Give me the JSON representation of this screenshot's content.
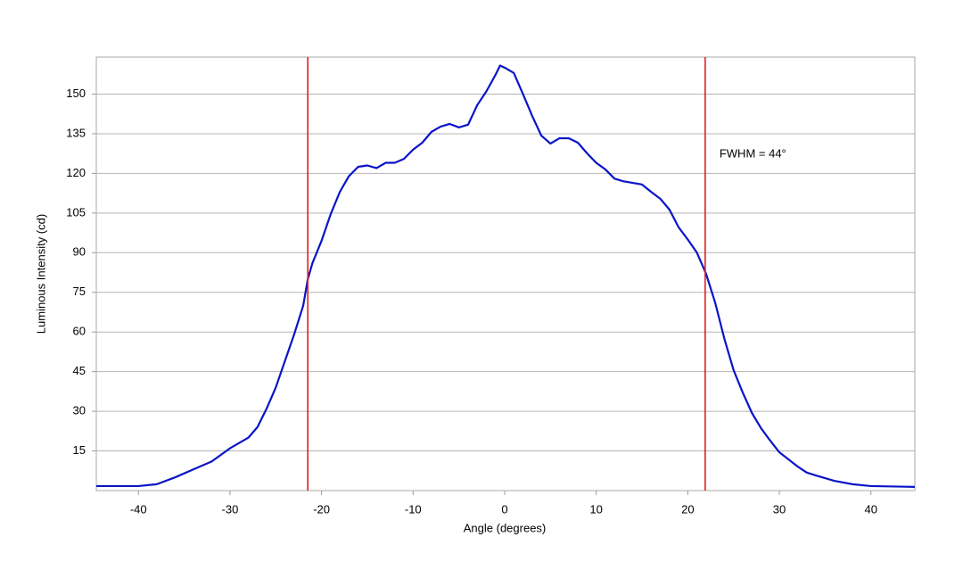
{
  "chart_data": {
    "type": "line",
    "x_label": "Angle (degrees)",
    "y_label": "Luminous Intensity (cd)",
    "annotation": "FWHM = 44°",
    "x": [
      -44.6,
      -40,
      -38,
      -36,
      -34,
      -32,
      -30,
      -28,
      -27,
      -26,
      -25,
      -24,
      -23,
      -22,
      -21.5,
      -21,
      -20,
      -19,
      -18,
      -17,
      -16,
      -15,
      -14,
      -13,
      -12,
      -11,
      -10,
      -9,
      -8,
      -7,
      -6,
      -5,
      -4,
      -3,
      -2,
      -1,
      -0.5,
      0,
      1,
      2,
      3,
      4,
      5,
      6,
      7,
      8,
      9,
      10,
      11,
      12,
      13,
      14,
      15,
      16,
      17,
      18,
      19,
      20,
      21,
      22,
      23,
      24,
      25,
      26,
      27,
      28,
      29,
      30,
      31,
      32,
      33,
      34,
      36,
      38,
      40,
      44.8
    ],
    "series": [
      {
        "color": "#0a14c8",
        "values": [
          1.7,
          1.7,
          2.4,
          5,
          8,
          11,
          16,
          20,
          24,
          31,
          39,
          49,
          59,
          70,
          80,
          86,
          94.5,
          104.6,
          113,
          119,
          122.5,
          123,
          122,
          124,
          124,
          125.5,
          129,
          131.6,
          135.7,
          137.7,
          138.7,
          137.4,
          138.4,
          145.8,
          151,
          157.3,
          160.8,
          160,
          158,
          150,
          141.8,
          134.3,
          131.3,
          133.3,
          133.3,
          131.6,
          127.6,
          124,
          121.5,
          118,
          117,
          116.4,
          115.8,
          113,
          110.4,
          106.3,
          99.6,
          95,
          90,
          82,
          71,
          57.4,
          45.6,
          37.1,
          29.4,
          23.6,
          18.9,
          14.5,
          11.8,
          9.1,
          6.8,
          5.7,
          3.7,
          2.4,
          1.7,
          1.4
        ]
      }
    ],
    "vlines": [
      -21.5,
      21.9
    ],
    "vline_color": "#e02020",
    "xlim": [
      -44.6,
      44.8
    ],
    "ylim": [
      0,
      164
    ],
    "xticks": [
      -40,
      -30,
      -20,
      -10,
      0,
      10,
      20,
      30,
      40
    ],
    "yticks": [
      15,
      30,
      45,
      60,
      75,
      90,
      105,
      120,
      135,
      150
    ],
    "grid": true
  }
}
